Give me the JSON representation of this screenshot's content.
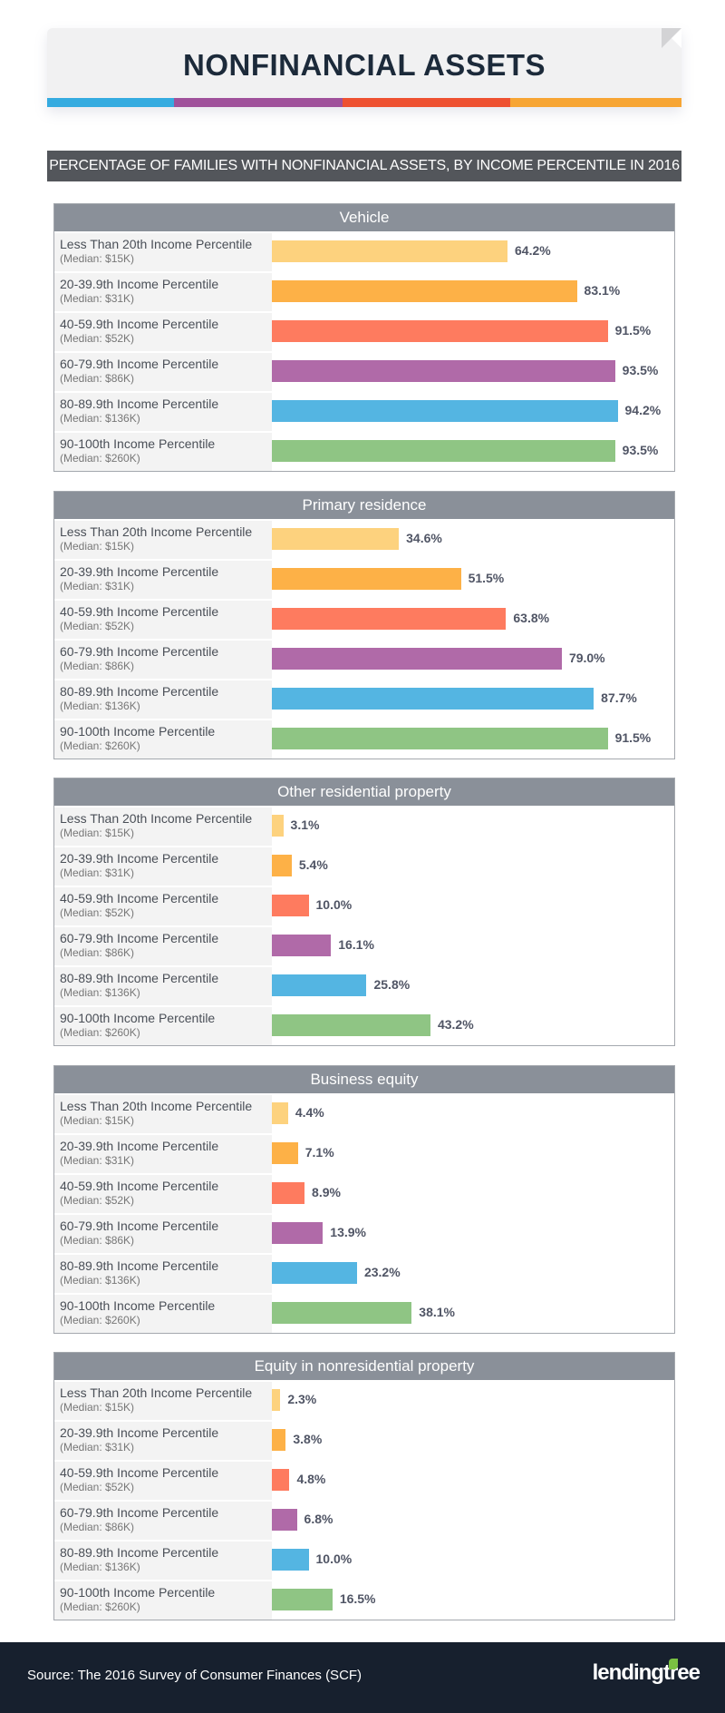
{
  "header": {
    "title": "NONFINANCIAL ASSETS",
    "stripe_colors": [
      "#35abe0",
      "#9f519b",
      "#ee5131",
      "#f7a534"
    ]
  },
  "subtitle": "PERCENTAGE OF FAMILIES WITH NONFINANCIAL ASSETS, BY INCOME PERCENTILE IN 2016",
  "chart_data": {
    "type": "bar",
    "orientation": "horizontal",
    "xlim": [
      0,
      100
    ],
    "unit": "%",
    "categories": [
      {
        "label": "Less Than 20th Income Percentile",
        "median": "(Median: $15K)"
      },
      {
        "label": "20-39.9th Income Percentile",
        "median": "(Median: $31K)"
      },
      {
        "label": "40-59.9th Income Percentile",
        "median": "(Median: $52K)"
      },
      {
        "label": "60-79.9th Income Percentile",
        "median": "(Median: $86K)"
      },
      {
        "label": "80-89.9th Income Percentile",
        "median": "(Median: $136K)"
      },
      {
        "label": "90-100th Income Percentile",
        "median": "(Median: $260K)"
      }
    ],
    "colors": [
      "#fdd27e",
      "#fdb147",
      "#fe7b5f",
      "#b06aa8",
      "#54b5e2",
      "#8fc584"
    ],
    "panels": [
      {
        "title": "Vehicle",
        "values": [
          64.2,
          83.1,
          91.5,
          93.5,
          94.2,
          93.5
        ],
        "labels": [
          "64.2%",
          "83.1%",
          "91.5%",
          "93.5%",
          "94.2%",
          "93.5%"
        ]
      },
      {
        "title": "Primary residence",
        "values": [
          34.6,
          51.5,
          63.8,
          79.0,
          87.7,
          91.5
        ],
        "labels": [
          "34.6%",
          "51.5%",
          "63.8%",
          "79.0%",
          "87.7%",
          "91.5%"
        ]
      },
      {
        "title": "Other residential property",
        "values": [
          3.1,
          5.4,
          10.0,
          16.1,
          25.8,
          43.2
        ],
        "labels": [
          "3.1%",
          "5.4%",
          "10.0%",
          "16.1%",
          "25.8%",
          "43.2%"
        ]
      },
      {
        "title": "Business equity",
        "values": [
          4.4,
          7.1,
          8.9,
          13.9,
          23.2,
          38.1
        ],
        "labels": [
          "4.4%",
          "7.1%",
          "8.9%",
          "13.9%",
          "23.2%",
          "38.1%"
        ]
      },
      {
        "title": "Equity in nonresidential property",
        "values": [
          2.3,
          3.8,
          4.8,
          6.8,
          10.0,
          16.5
        ],
        "labels": [
          "2.3%",
          "3.8%",
          "4.8%",
          "6.8%",
          "10.0%",
          "16.5%"
        ]
      }
    ]
  },
  "footer": {
    "source": "Source: The 2016 Survey of Consumer Finances (SCF)",
    "logo": "lendingtree"
  }
}
